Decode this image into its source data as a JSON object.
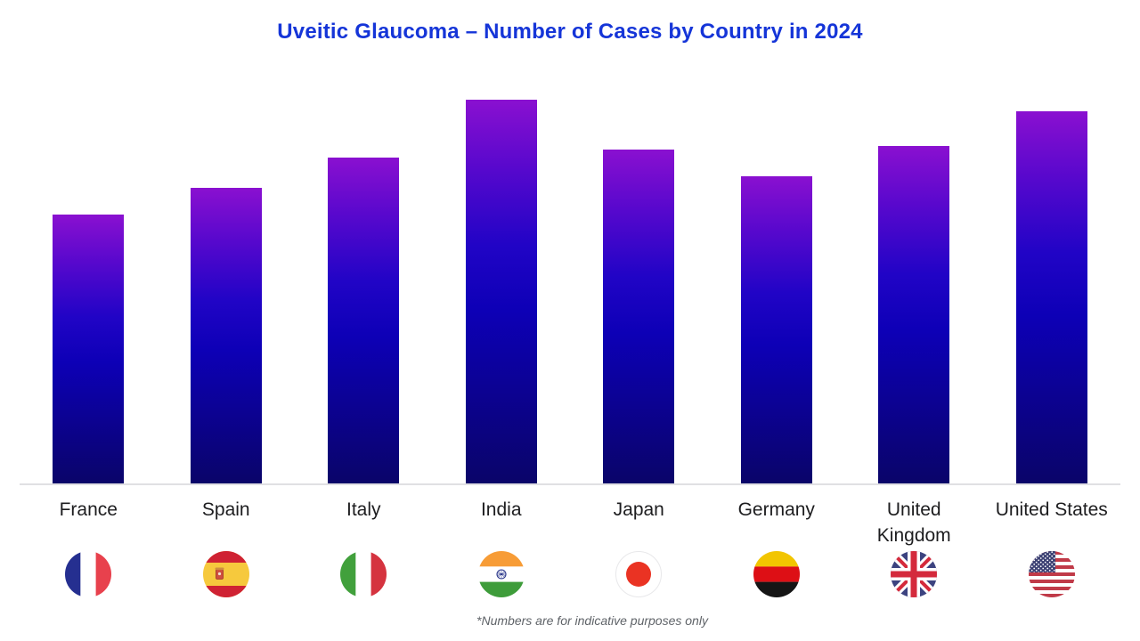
{
  "title": "Uveitic Glaucoma – Number of Cases by Country in 2024",
  "footnote": "*Numbers are for indicative purposes only",
  "colors": {
    "title_text": "#1535d8",
    "bar_gradient_top": "#8a10d0",
    "bar_gradient_mid": "#1203c0",
    "bar_gradient_bottom": "#0a0469",
    "axis_line": "#e0e0e3",
    "category_label": "#1d1d1f",
    "footnote_text": "#5f6368"
  },
  "chart_data": {
    "type": "bar",
    "title": "Uveitic Glaucoma – Number of Cases by Country in 2024",
    "categories": [
      "France",
      "Spain",
      "Italy",
      "India",
      "Japan",
      "Germany",
      "United Kingdom",
      "United States"
    ],
    "category_display": [
      "France",
      "Spain",
      "Italy",
      "India",
      "Japan",
      "Germany",
      "United\nKingdom",
      "United States"
    ],
    "values_relative_pct_of_max": [
      70,
      77,
      85,
      100,
      87,
      80,
      88,
      97
    ],
    "value_axis_visible": false,
    "value_labels_visible": false,
    "gridlines": false,
    "legend": "none",
    "bar_style": "vertical gradient purple-to-navy",
    "note": "*Numbers are for indicative purposes only",
    "flag_icons": [
      "france-flag-icon",
      "spain-flag-icon",
      "italy-flag-icon",
      "india-flag-icon",
      "japan-flag-icon",
      "germany-flag-icon",
      "united-kingdom-flag-icon",
      "united-states-flag-icon"
    ]
  }
}
